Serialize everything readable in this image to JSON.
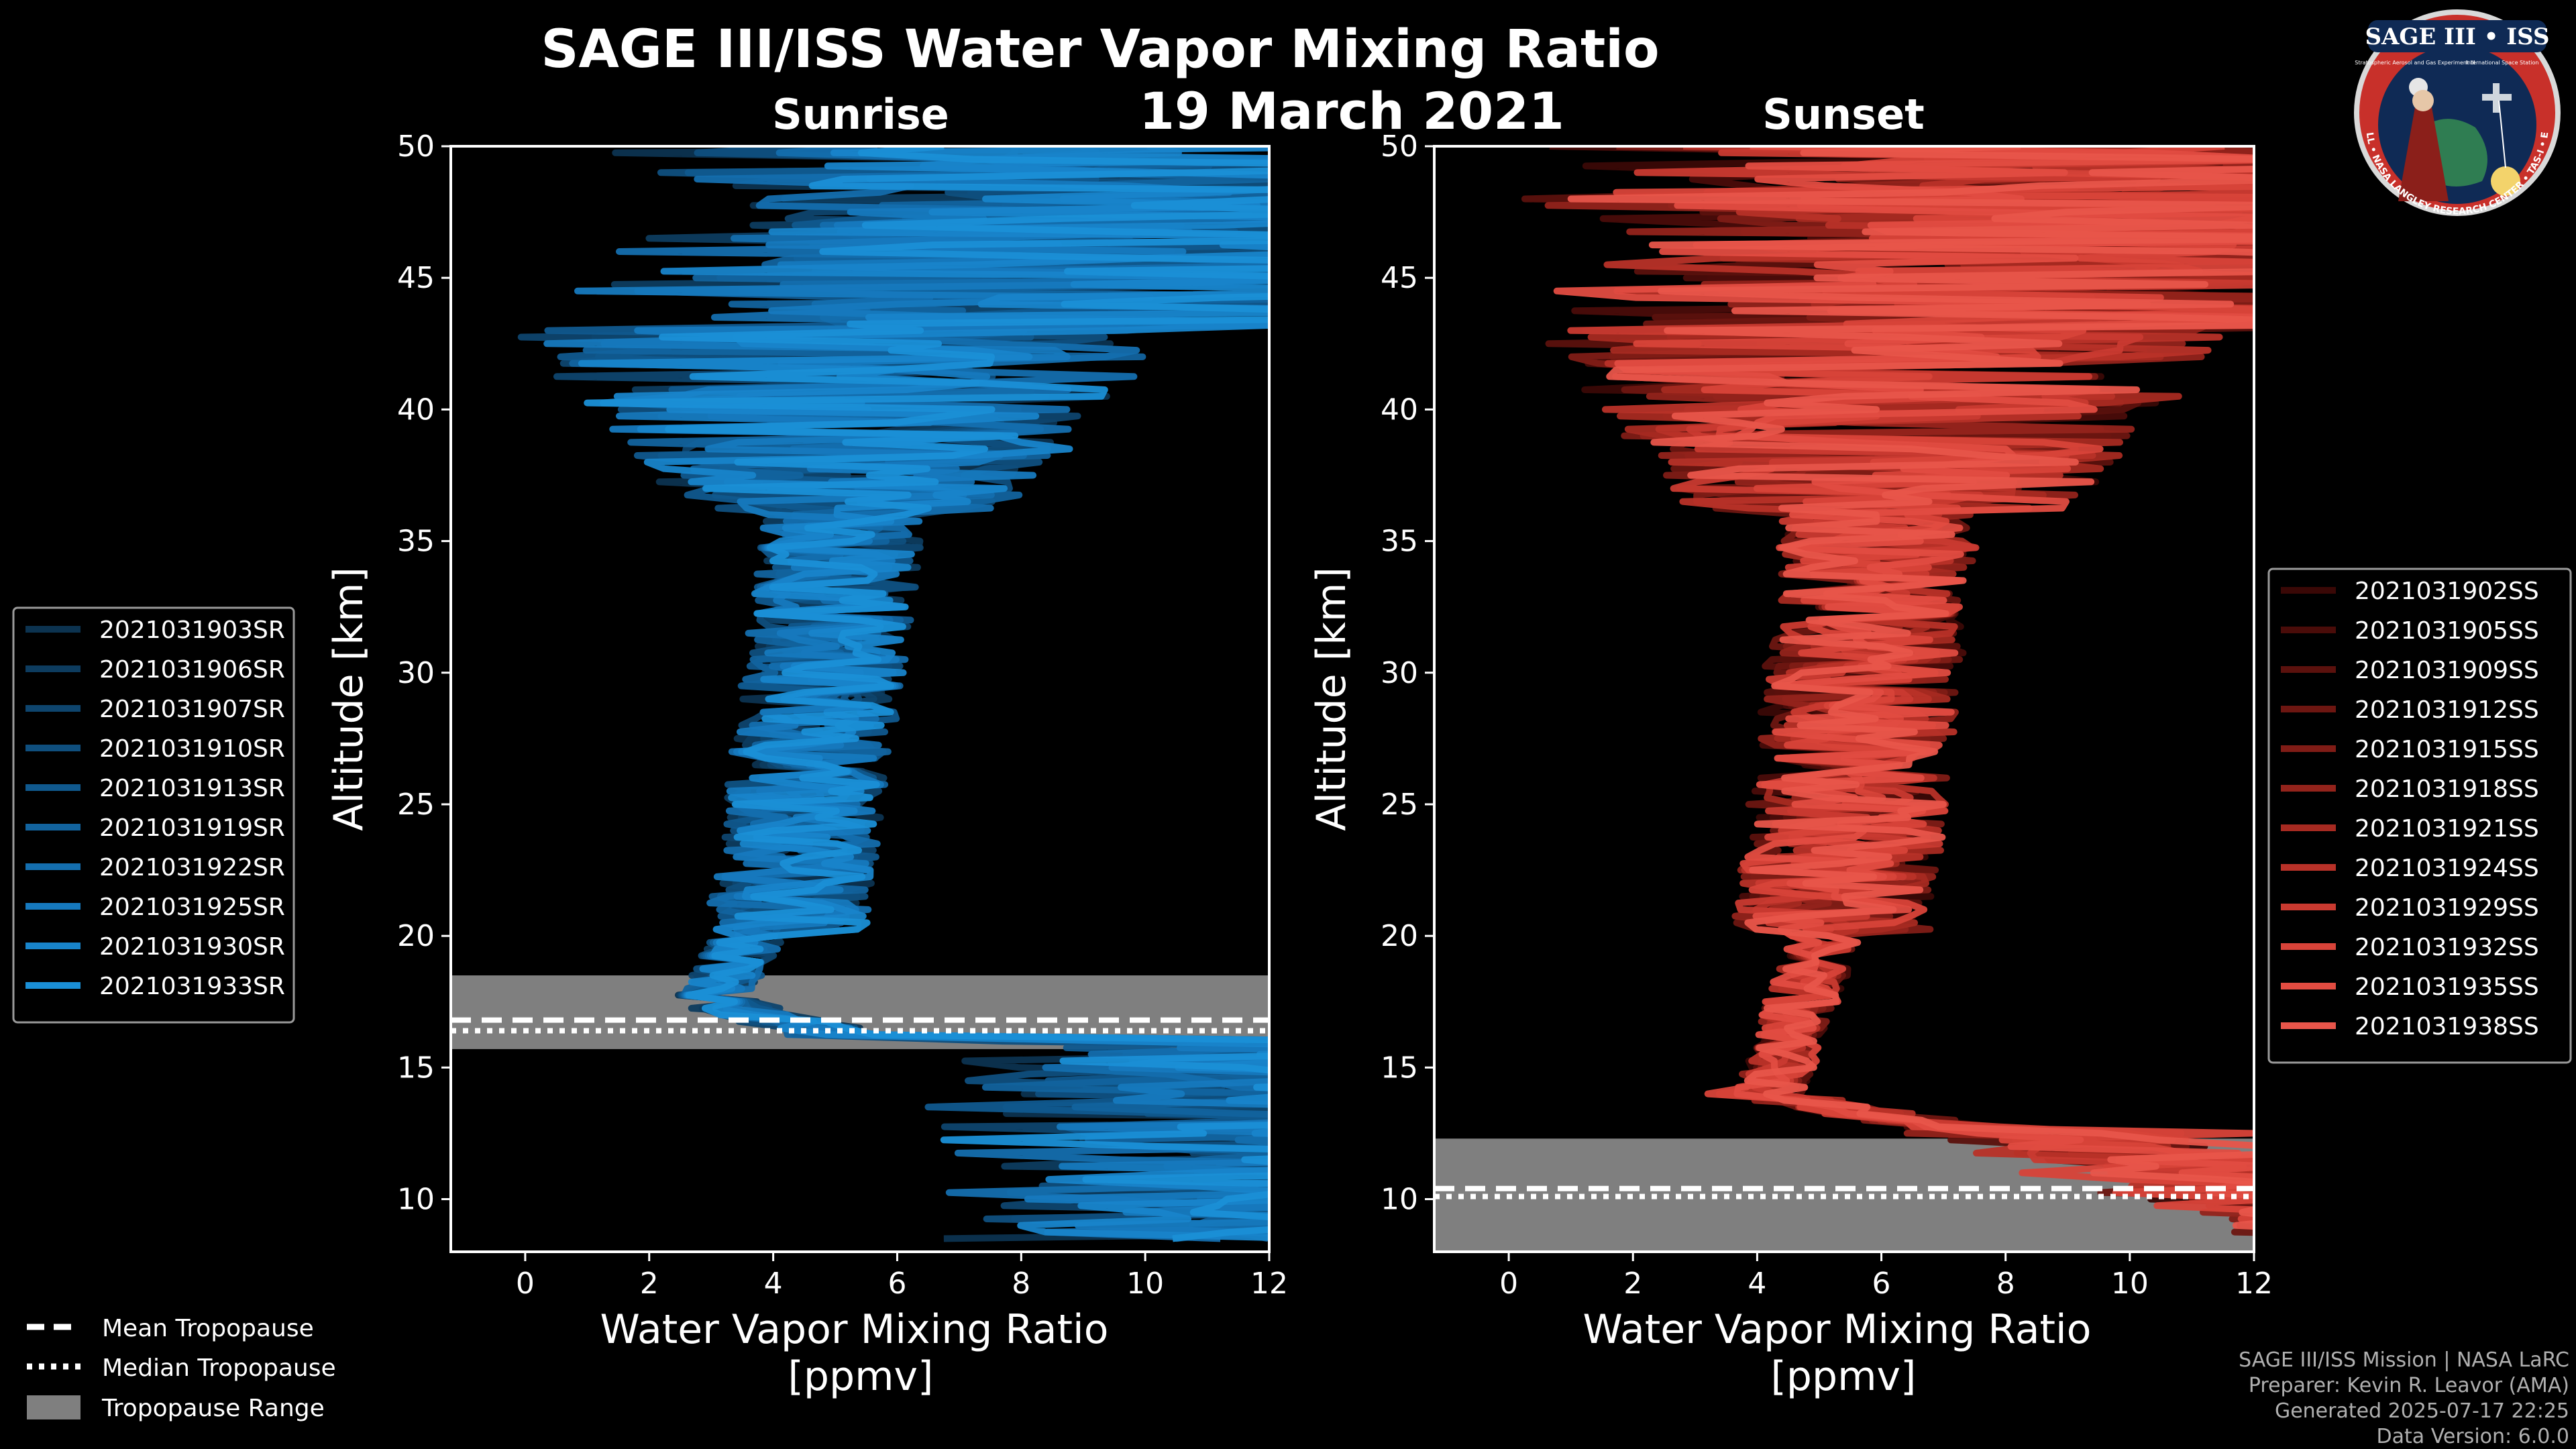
{
  "header": {
    "title": "SAGE III/ISS Water Vapor Mixing Ratio",
    "date": "19 March 2021"
  },
  "logo": {
    "top_text": "SAGE III • ISS",
    "sub_left": "Stratospheric Aerosol and Gas Experiment III",
    "sub_right": "International Space Station",
    "ring_text": "BALL • NASA LANGLEY RESEARCH CENTER • TAS-I • ESA"
  },
  "colors": {
    "background": "#000000",
    "sunrise": "#1a8fd6",
    "sunset": "#e8554a",
    "tropopause_range": "#7f7f7f"
  },
  "chart_data": [
    {
      "type": "line",
      "title": "Sunrise",
      "xlabel": "Water Vapor Mixing Ratio\n[ppmv]",
      "ylabel": "Altitude [km]",
      "xlim": [
        -1.2,
        12
      ],
      "ylim": [
        8,
        50
      ],
      "xticks": [
        0,
        2,
        4,
        6,
        8,
        10,
        12
      ],
      "yticks": [
        10,
        15,
        20,
        25,
        30,
        35,
        40,
        45,
        50
      ],
      "legend_position": "left",
      "tropopause": {
        "mean": 16.7,
        "median": 16.5,
        "range": [
          15.7,
          18.5
        ]
      },
      "series": [
        {
          "name": "2021031903SR",
          "color": "#0c3350"
        },
        {
          "name": "2021031906SR",
          "color": "#0d3c5f"
        },
        {
          "name": "2021031907SR",
          "color": "#0e456e"
        },
        {
          "name": "2021031910SR",
          "color": "#0f4f7e"
        },
        {
          "name": "2021031913SR",
          "color": "#10598e"
        },
        {
          "name": "2021031919SR",
          "color": "#12639e"
        },
        {
          "name": "2021031922SR",
          "color": "#146eae"
        },
        {
          "name": "2021031925SR",
          "color": "#1679be"
        },
        {
          "name": "2021031930SR",
          "color": "#1884ca"
        },
        {
          "name": "2021031933SR",
          "color": "#1a8fd6"
        }
      ]
    },
    {
      "type": "line",
      "title": "Sunset",
      "xlabel": "Water Vapor Mixing Ratio\n[ppmv]",
      "ylabel": "Altitude [km]",
      "xlim": [
        -1.2,
        12
      ],
      "ylim": [
        8,
        50
      ],
      "xticks": [
        0,
        2,
        4,
        6,
        8,
        10,
        12
      ],
      "yticks": [
        10,
        15,
        20,
        25,
        30,
        35,
        40,
        45,
        50
      ],
      "legend_position": "right",
      "tropopause": {
        "mean": 10.3,
        "median": 10.2,
        "range": [
          8,
          12.3
        ]
      },
      "series": [
        {
          "name": "2021031902SS",
          "color": "#3a0806"
        },
        {
          "name": "2021031905SS",
          "color": "#4a0c09"
        },
        {
          "name": "2021031909SS",
          "color": "#5b110d"
        },
        {
          "name": "2021031912SS",
          "color": "#6d1611"
        },
        {
          "name": "2021031915SS",
          "color": "#801c16"
        },
        {
          "name": "2021031918SS",
          "color": "#93231b"
        },
        {
          "name": "2021031921SS",
          "color": "#a62a21"
        },
        {
          "name": "2021031924SS",
          "color": "#b83128"
        },
        {
          "name": "2021031929SS",
          "color": "#c93a30"
        },
        {
          "name": "2021031932SS",
          "color": "#d84339"
        },
        {
          "name": "2021031935SS",
          "color": "#e24c41"
        },
        {
          "name": "2021031938SS",
          "color": "#e8554a"
        }
      ]
    }
  ],
  "tropopause_legend": {
    "mean": "Mean Tropopause",
    "median": "Median Tropopause",
    "range": "Tropopause Range"
  },
  "credits": {
    "line1": "SAGE III/ISS Mission | NASA LaRC",
    "line2": "Preparer: Kevin R. Leavor (AMA)",
    "line3": "Generated 2025-07-17 22:25",
    "line4": "Data Version: 6.0.0"
  }
}
